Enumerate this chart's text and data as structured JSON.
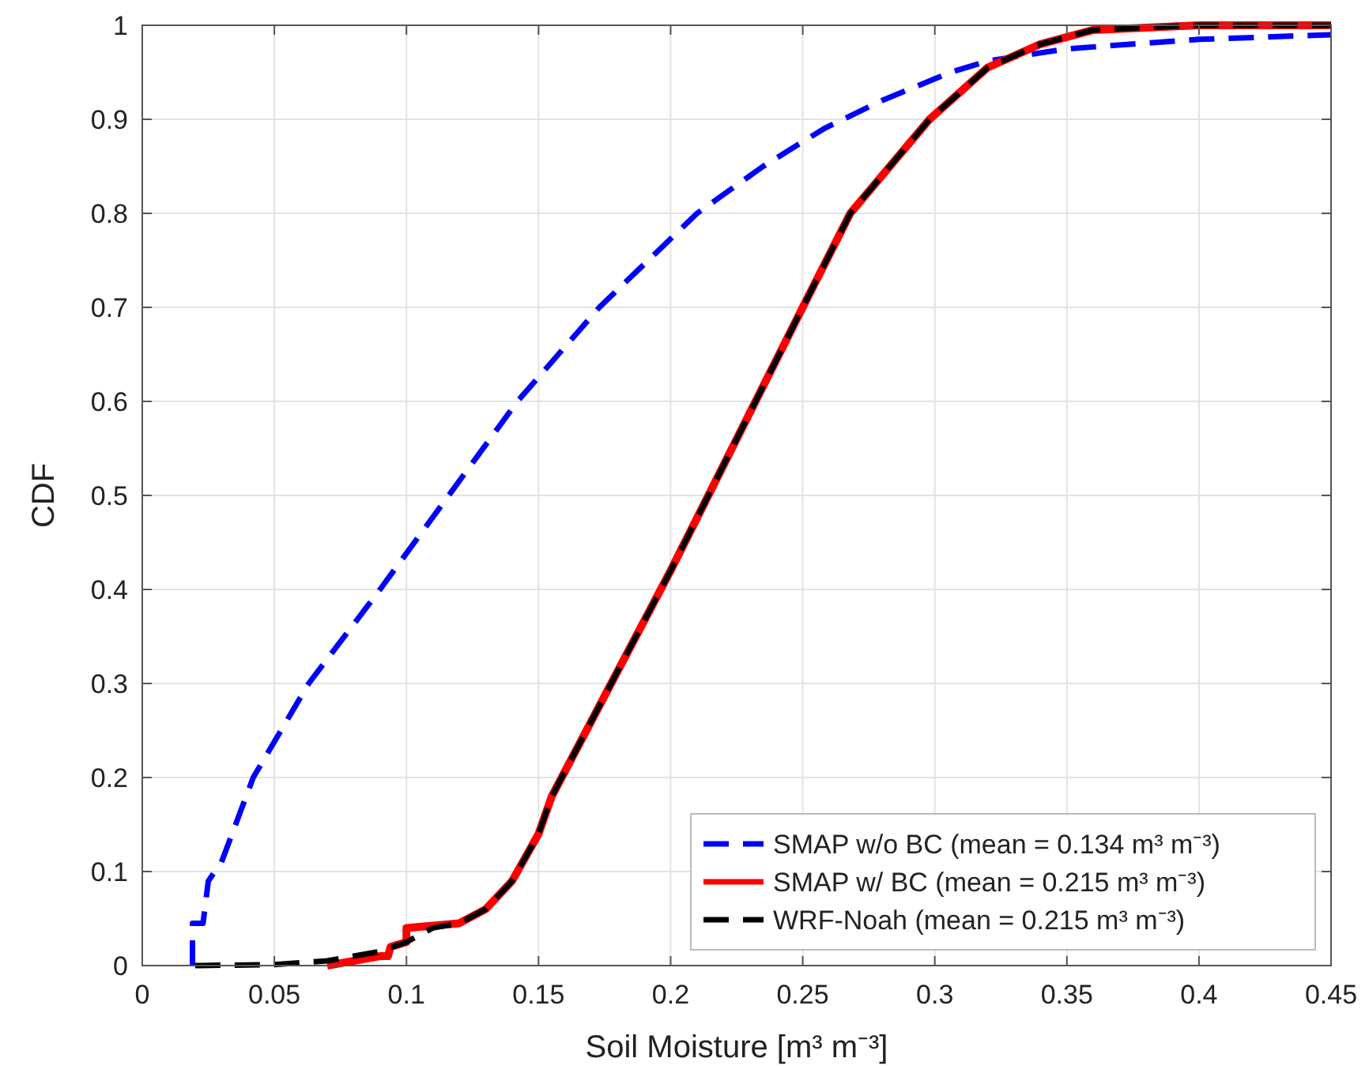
{
  "chart_data": {
    "type": "line",
    "xlabel": "Soil Moisture [m³ m⁻³]",
    "ylabel": "CDF",
    "xlim": [
      0,
      0.45
    ],
    "ylim": [
      0,
      1
    ],
    "xticks": [
      0,
      0.05,
      0.1,
      0.15,
      0.2,
      0.25,
      0.3,
      0.35,
      0.4,
      0.45
    ],
    "yticks": [
      0,
      0.1,
      0.2,
      0.3,
      0.4,
      0.5,
      0.6,
      0.7,
      0.8,
      0.9,
      1
    ],
    "grid": true,
    "legend": "bottom right",
    "marker": "none",
    "series": [
      {
        "name": "SMAP w/o BC (mean = 0.134 m³ m⁻³)",
        "color": "#0000ff",
        "line_style": "dashed",
        "x": [
          0.019,
          0.019,
          0.023,
          0.025,
          0.03,
          0.042,
          0.063,
          0.09,
          0.116,
          0.142,
          0.173,
          0.21,
          0.235,
          0.258,
          0.28,
          0.306,
          0.32,
          0.35,
          0.4,
          0.45
        ],
        "values": [
          0,
          0.045,
          0.045,
          0.09,
          0.11,
          0.2,
          0.3,
          0.4,
          0.5,
          0.6,
          0.7,
          0.8,
          0.85,
          0.89,
          0.92,
          0.95,
          0.962,
          0.975,
          0.985,
          0.99
        ]
      },
      {
        "name": "SMAP w/ BC (mean = 0.215 m³ m⁻³)",
        "color": "#ff0000",
        "line_style": "solid",
        "x": [
          0.07,
          0.09,
          0.093,
          0.094,
          0.1,
          0.1,
          0.12,
          0.13,
          0.14,
          0.15,
          0.155,
          0.2,
          0.25,
          0.268,
          0.298,
          0.32,
          0.34,
          0.36,
          0.4,
          0.45
        ],
        "values": [
          0,
          0.01,
          0.01,
          0.02,
          0.025,
          0.04,
          0.045,
          0.06,
          0.09,
          0.14,
          0.18,
          0.42,
          0.7,
          0.8,
          0.9,
          0.955,
          0.98,
          0.995,
          1,
          1
        ]
      },
      {
        "name": "WRF-Noah (mean = 0.215 m³ m⁻³)",
        "color": "#000000",
        "line_style": "dashed",
        "x": [
          0.02,
          0.05,
          0.07,
          0.09,
          0.1,
          0.11,
          0.12,
          0.13,
          0.14,
          0.15,
          0.155,
          0.2,
          0.25,
          0.268,
          0.298,
          0.32,
          0.34,
          0.36,
          0.4,
          0.45
        ],
        "values": [
          0,
          0.001,
          0.005,
          0.015,
          0.025,
          0.04,
          0.045,
          0.06,
          0.09,
          0.14,
          0.18,
          0.42,
          0.7,
          0.8,
          0.9,
          0.955,
          0.98,
          0.995,
          1,
          1
        ]
      }
    ]
  }
}
